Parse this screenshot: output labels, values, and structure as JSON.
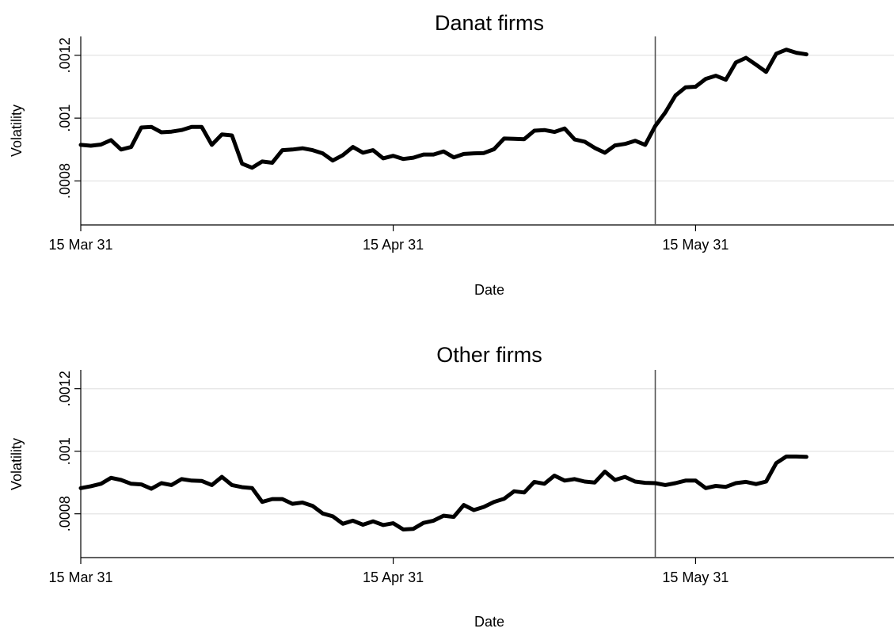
{
  "chart_data": [
    {
      "type": "line",
      "title": "Danat firms",
      "xlabel": "Date",
      "ylabel": "Volatility",
      "x_start": "1931-03-15",
      "xlim": [
        "1931-03-15",
        "1931-06-04"
      ],
      "ylim": [
        0.00066,
        0.00126
      ],
      "yticks": [
        {
          "value": 0.0008,
          "label": ".0008"
        },
        {
          "value": 0.001,
          "label": ".001"
        },
        {
          "value": 0.0012,
          "label": ".0012"
        }
      ],
      "xticks": [
        {
          "date": "1931-03-15",
          "label": "15 Mar 31"
        },
        {
          "date": "1931-04-15",
          "label": "15 Apr 31"
        },
        {
          "date": "1931-05-15",
          "label": "15 May 31"
        }
      ],
      "grid": true,
      "legend": "none",
      "reference_line": {
        "date": "1931-05-11"
      },
      "series": [
        {
          "values": [
            0.000915,
            0.000912,
            0.000916,
            0.00093,
            0.0009,
            0.000908,
            0.00097,
            0.000972,
            0.000955,
            0.000957,
            0.000962,
            0.000972,
            0.000972,
            0.000915,
            0.000948,
            0.000945,
            0.000855,
            0.000842,
            0.000862,
            0.000858,
            0.000898,
            0.0009,
            0.000904,
            0.000898,
            0.000888,
            0.000865,
            0.000882,
            0.000908,
            0.00089,
            0.000898,
            0.000872,
            0.00088,
            0.00087,
            0.000874,
            0.000884,
            0.000884,
            0.000894,
            0.000875,
            0.000886,
            0.000888,
            0.000889,
            0.000901,
            0.000935,
            0.000934,
            0.000933,
            0.00096,
            0.000962,
            0.000956,
            0.000967,
            0.000932,
            0.000925,
            0.000905,
            0.00089,
            0.000913,
            0.000918,
            0.000928,
            0.000915,
            0.000975,
            0.001018,
            0.001072,
            0.001098,
            0.0011,
            0.001125,
            0.001135,
            0.001122,
            0.001177,
            0.001192,
            0.00117,
            0.001147,
            0.001205,
            0.001218,
            0.001208,
            0.001203
          ]
        }
      ]
    },
    {
      "type": "line",
      "title": "Other firms",
      "xlabel": "Date",
      "ylabel": "Volatility",
      "x_start": "1931-03-15",
      "xlim": [
        "1931-03-15",
        "1931-06-04"
      ],
      "ylim": [
        0.00066,
        0.00126
      ],
      "yticks": [
        {
          "value": 0.0008,
          "label": ".0008"
        },
        {
          "value": 0.001,
          "label": ".001"
        },
        {
          "value": 0.0012,
          "label": ".0012"
        }
      ],
      "xticks": [
        {
          "date": "1931-03-15",
          "label": "15 Mar 31"
        },
        {
          "date": "1931-04-15",
          "label": "15 Apr 31"
        },
        {
          "date": "1931-05-15",
          "label": "15 May 31"
        }
      ],
      "grid": true,
      "legend": "none",
      "reference_line": {
        "date": "1931-05-11"
      },
      "series": [
        {
          "values": [
            0.000882,
            0.000888,
            0.000896,
            0.000915,
            0.000908,
            0.000896,
            0.000894,
            0.00088,
            0.000898,
            0.000892,
            0.000911,
            0.000906,
            0.000905,
            0.000892,
            0.000918,
            0.000892,
            0.000885,
            0.000882,
            0.000838,
            0.000847,
            0.000847,
            0.000832,
            0.000836,
            0.000825,
            0.000801,
            0.000792,
            0.000768,
            0.000778,
            0.000765,
            0.000776,
            0.000764,
            0.00077,
            0.00075,
            0.000752,
            0.000771,
            0.000778,
            0.000794,
            0.00079,
            0.000828,
            0.000812,
            0.000822,
            0.000838,
            0.000848,
            0.000872,
            0.000868,
            0.000902,
            0.000896,
            0.000922,
            0.000906,
            0.000911,
            0.000903,
            0.0009,
            0.000935,
            0.000908,
            0.000918,
            0.000903,
            0.000899,
            0.000898,
            0.000892,
            0.000898,
            0.000906,
            0.000906,
            0.000882,
            0.000889,
            0.000886,
            0.000898,
            0.000902,
            0.000895,
            0.000903,
            0.000962,
            0.000983,
            0.000983,
            0.000982
          ]
        }
      ]
    }
  ]
}
